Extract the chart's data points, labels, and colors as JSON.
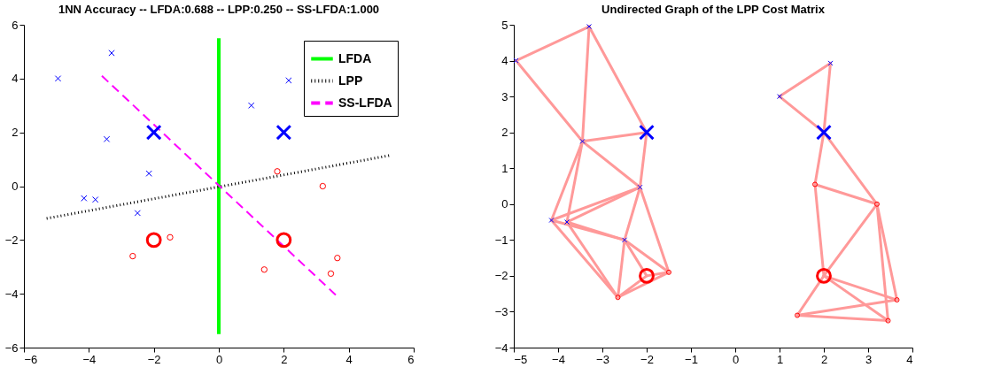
{
  "chart_data": [
    {
      "type": "scatter",
      "title": "1NN Accuracy -- LFDA:0.688 -- LPP:0.250 -- SS-LFDA:1.000",
      "xlim": [
        -6,
        6
      ],
      "ylim": [
        -6,
        6
      ],
      "xticks": [
        -6,
        -4,
        -2,
        0,
        2,
        4,
        6
      ],
      "yticks": [
        -6,
        -4,
        -2,
        0,
        2,
        4,
        6
      ],
      "legend": "top right",
      "series": [
        {
          "marker": "cross",
          "color": "#0000ff",
          "x": [
            -4.95,
            -3.3,
            -3.45,
            -2.15,
            -4.15,
            -3.8,
            -2.5,
            1.0,
            2.15
          ],
          "values": [
            4.0,
            4.95,
            1.75,
            0.47,
            -0.45,
            -0.5,
            -1.0,
            3.0,
            3.93
          ]
        },
        {
          "marker": "cross",
          "color": "#0000ff",
          "x": [
            -2,
            2
          ],
          "values": [
            2,
            2
          ]
        },
        {
          "marker": "circle",
          "color": "#ff0000",
          "x": [
            -1.5,
            -2.65,
            1.8,
            3.2,
            1.4,
            3.45,
            3.65
          ],
          "values": [
            -1.9,
            -2.6,
            0.55,
            0.0,
            -3.1,
            -3.25,
            -2.67
          ]
        },
        {
          "marker": "circle",
          "color": "#ff0000",
          "x": [
            -2,
            2
          ],
          "values": [
            -2,
            -2
          ]
        },
        {
          "type": "line",
          "name": "LFDA",
          "color": "#00ff00",
          "line_style": "solid",
          "x": [
            0,
            0
          ],
          "values": [
            -5.5,
            5.5
          ]
        },
        {
          "type": "line",
          "name": "LPP",
          "color": "#000000",
          "line_style": "dotted",
          "x": [
            -5.3,
            5.3
          ],
          "values": [
            -1.2,
            1.15
          ]
        },
        {
          "type": "line",
          "name": "SS-LFDA",
          "color": "#ff00ff",
          "line_style": "dashed",
          "x": [
            -3.6,
            3.65
          ],
          "values": [
            4.1,
            -4.1
          ]
        }
      ]
    },
    {
      "type": "scatter",
      "title": "Undirected Graph of the LPP Cost Matrix",
      "xlim": [
        -5,
        4
      ],
      "ylim": [
        -4,
        5
      ],
      "xticks": [
        -5,
        -4,
        -3,
        -2,
        -1,
        0,
        1,
        2,
        3,
        4
      ],
      "yticks": [
        -4,
        -3,
        -2,
        -1,
        0,
        1,
        2,
        3,
        4,
        5
      ],
      "line_style": "solid",
      "series": [
        {
          "type": "line",
          "color": "#ff9999",
          "x": [
            -4.95,
            -3.3
          ],
          "values": [
            4.0,
            4.95
          ]
        },
        {
          "type": "line",
          "color": "#ff9999",
          "x": [
            -4.95,
            -3.45
          ],
          "values": [
            4.0,
            1.75
          ]
        },
        {
          "type": "line",
          "color": "#ff9999",
          "x": [
            -3.3,
            -3.45
          ],
          "values": [
            4.95,
            1.75
          ]
        },
        {
          "type": "line",
          "color": "#ff9999",
          "x": [
            -3.3,
            -2
          ],
          "values": [
            4.95,
            2
          ]
        },
        {
          "type": "line",
          "color": "#ff9999",
          "x": [
            -3.45,
            -2
          ],
          "values": [
            1.75,
            2
          ]
        },
        {
          "type": "line",
          "color": "#ff9999",
          "x": [
            -3.45,
            -2.15
          ],
          "values": [
            1.75,
            0.47
          ]
        },
        {
          "type": "line",
          "color": "#ff9999",
          "x": [
            -2,
            -2.15
          ],
          "values": [
            2,
            0.47
          ]
        },
        {
          "type": "line",
          "color": "#ff9999",
          "x": [
            -3.45,
            -4.15
          ],
          "values": [
            1.75,
            -0.45
          ]
        },
        {
          "type": "line",
          "color": "#ff9999",
          "x": [
            -3.45,
            -3.8
          ],
          "values": [
            1.75,
            -0.5
          ]
        },
        {
          "type": "line",
          "color": "#ff9999",
          "x": [
            -2.15,
            -4.15
          ],
          "values": [
            0.47,
            -0.45
          ]
        },
        {
          "type": "line",
          "color": "#ff9999",
          "x": [
            -2.15,
            -3.8
          ],
          "values": [
            0.47,
            -0.5
          ]
        },
        {
          "type": "line",
          "color": "#ff9999",
          "x": [
            -2.15,
            -2.5
          ],
          "values": [
            0.47,
            -1.0
          ]
        },
        {
          "type": "line",
          "color": "#ff9999",
          "x": [
            -2.15,
            -1.5
          ],
          "values": [
            0.47,
            -1.9
          ]
        },
        {
          "type": "line",
          "color": "#ff9999",
          "x": [
            -4.15,
            -2.5
          ],
          "values": [
            -0.45,
            -1.0
          ]
        },
        {
          "type": "line",
          "color": "#ff9999",
          "x": [
            -3.8,
            -2.5
          ],
          "values": [
            -0.5,
            -1.0
          ]
        },
        {
          "type": "line",
          "color": "#ff9999",
          "x": [
            -4.15,
            -2.65
          ],
          "values": [
            -0.45,
            -2.6
          ]
        },
        {
          "type": "line",
          "color": "#ff9999",
          "x": [
            -3.8,
            -2.65
          ],
          "values": [
            -0.5,
            -2.6
          ]
        },
        {
          "type": "line",
          "color": "#ff9999",
          "x": [
            -2.5,
            -2.65
          ],
          "values": [
            -1.0,
            -2.6
          ]
        },
        {
          "type": "line",
          "color": "#ff9999",
          "x": [
            -2.5,
            -2
          ],
          "values": [
            -1.0,
            -2
          ]
        },
        {
          "type": "line",
          "color": "#ff9999",
          "x": [
            -2.5,
            -1.5
          ],
          "values": [
            -1.0,
            -1.9
          ]
        },
        {
          "type": "line",
          "color": "#ff9999",
          "x": [
            -2.65,
            -2
          ],
          "values": [
            -2.6,
            -2
          ]
        },
        {
          "type": "line",
          "color": "#ff9999",
          "x": [
            -2,
            -1.5
          ],
          "values": [
            -2,
            -1.9
          ]
        },
        {
          "type": "line",
          "color": "#ff9999",
          "x": [
            -2.65,
            -1.5
          ],
          "values": [
            -2.6,
            -1.9
          ]
        },
        {
          "type": "line",
          "color": "#ff9999",
          "x": [
            1.0,
            2.15
          ],
          "values": [
            3.0,
            3.93
          ]
        },
        {
          "type": "line",
          "color": "#ff9999",
          "x": [
            1.0,
            2
          ],
          "values": [
            3.0,
            2
          ]
        },
        {
          "type": "line",
          "color": "#ff9999",
          "x": [
            2.15,
            2
          ],
          "values": [
            3.93,
            2
          ]
        },
        {
          "type": "line",
          "color": "#ff9999",
          "x": [
            2,
            1.8
          ],
          "values": [
            2,
            0.55
          ]
        },
        {
          "type": "line",
          "color": "#ff9999",
          "x": [
            2,
            3.2
          ],
          "values": [
            2,
            0.0
          ]
        },
        {
          "type": "line",
          "color": "#ff9999",
          "x": [
            1.8,
            3.2
          ],
          "values": [
            0.55,
            0.0
          ]
        },
        {
          "type": "line",
          "color": "#ff9999",
          "x": [
            1.8,
            2
          ],
          "values": [
            0.55,
            -2
          ]
        },
        {
          "type": "line",
          "color": "#ff9999",
          "x": [
            3.2,
            2
          ],
          "values": [
            0.0,
            -2
          ]
        },
        {
          "type": "line",
          "color": "#ff9999",
          "x": [
            3.2,
            3.45
          ],
          "values": [
            0.0,
            -3.25
          ]
        },
        {
          "type": "line",
          "color": "#ff9999",
          "x": [
            3.2,
            3.65
          ],
          "values": [
            0.0,
            -2.67
          ]
        },
        {
          "type": "line",
          "color": "#ff9999",
          "x": [
            2,
            1.4
          ],
          "values": [
            -2,
            -3.1
          ]
        },
        {
          "type": "line",
          "color": "#ff9999",
          "x": [
            2,
            3.45
          ],
          "values": [
            -2,
            -3.25
          ]
        },
        {
          "type": "line",
          "color": "#ff9999",
          "x": [
            2,
            3.65
          ],
          "values": [
            -2,
            -2.67
          ]
        },
        {
          "type": "line",
          "color": "#ff9999",
          "x": [
            1.4,
            3.65
          ],
          "values": [
            -3.1,
            -2.67
          ]
        },
        {
          "type": "line",
          "color": "#ff9999",
          "x": [
            1.4,
            3.45
          ],
          "values": [
            -3.1,
            -3.25
          ]
        },
        {
          "marker": "cross",
          "color": "#0000ff",
          "x": [
            -4.95,
            -3.3,
            -3.45,
            -2.15,
            -4.15,
            -3.8,
            -2.5,
            1.0,
            2.15
          ],
          "values": [
            4.0,
            4.95,
            1.75,
            0.47,
            -0.45,
            -0.5,
            -1.0,
            3.0,
            3.93
          ]
        },
        {
          "marker": "cross",
          "color": "#0000ff",
          "x": [
            -2,
            2
          ],
          "values": [
            2,
            2
          ]
        },
        {
          "marker": "circle",
          "color": "#ff0000",
          "x": [
            -1.5,
            -2.65,
            1.8,
            3.2,
            1.4,
            3.45,
            3.65
          ],
          "values": [
            -1.9,
            -2.6,
            0.55,
            0.0,
            -3.1,
            -3.25,
            -2.67
          ]
        },
        {
          "marker": "circle",
          "color": "#ff0000",
          "x": [
            -2,
            2
          ],
          "values": [
            -2,
            -2
          ]
        }
      ]
    }
  ]
}
